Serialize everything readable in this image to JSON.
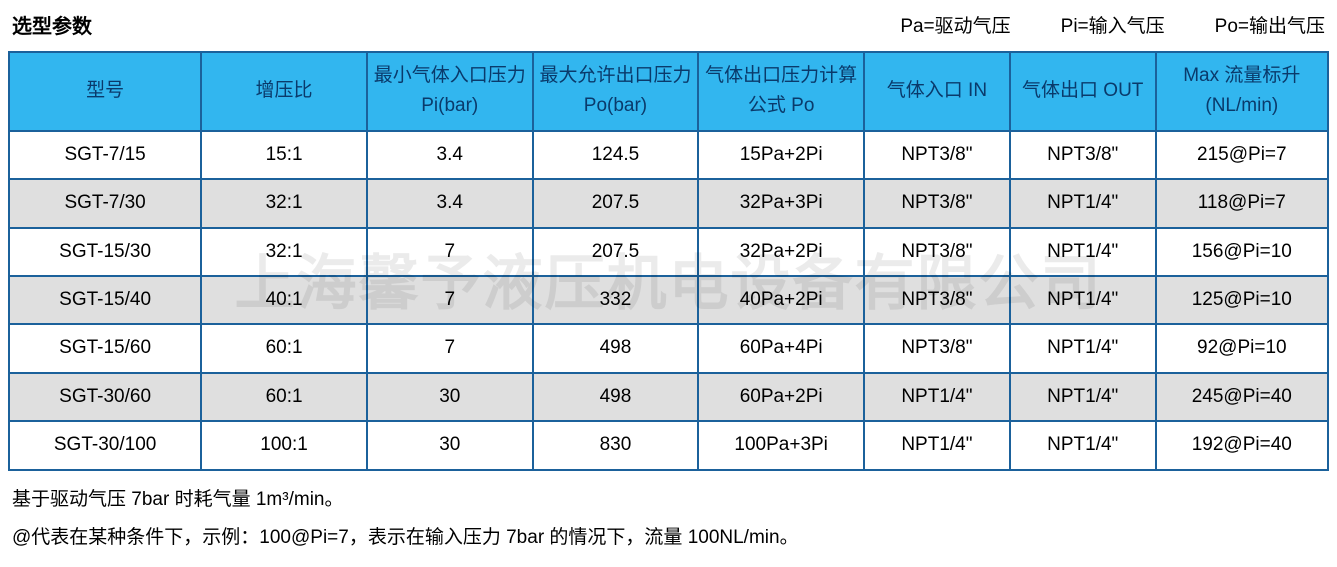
{
  "title": "选型参数",
  "legend": {
    "pa": "Pa=驱动气压",
    "pi": "Pi=输入气压",
    "po": "Po=输出气压"
  },
  "table": {
    "header_bg": "#32b6ef",
    "header_text_color": "#0a3a6b",
    "border_color": "#1b619b",
    "row_even_bg": "#ffffff",
    "row_odd_bg": "#dfdfdf",
    "cell_fontsize": 19,
    "columns": [
      "型号",
      "增压比",
      "最小气体入口压力 Pi(bar)",
      "最大允许出口压力 Po(bar)",
      "气体出口压力计算公式 Po",
      "气体入口 IN",
      "气体出口 OUT",
      "Max 流量标升 (NL/min)"
    ],
    "rows": [
      [
        "SGT-7/15",
        "15:1",
        "3.4",
        "124.5",
        "15Pa+2Pi",
        "NPT3/8\"",
        "NPT3/8\"",
        "215@Pi=7"
      ],
      [
        "SGT-7/30",
        "32:1",
        "3.4",
        "207.5",
        "32Pa+3Pi",
        "NPT3/8\"",
        "NPT1/4\"",
        "118@Pi=7"
      ],
      [
        "SGT-15/30",
        "32:1",
        "7",
        "207.5",
        "32Pa+2Pi",
        "NPT3/8\"",
        "NPT1/4\"",
        "156@Pi=10"
      ],
      [
        "SGT-15/40",
        "40:1",
        "7",
        "332",
        "40Pa+2Pi",
        "NPT3/8\"",
        "NPT1/4\"",
        "125@Pi=10"
      ],
      [
        "SGT-15/60",
        "60:1",
        "7",
        "498",
        "60Pa+4Pi",
        "NPT3/8\"",
        "NPT1/4\"",
        "92@Pi=10"
      ],
      [
        "SGT-30/60",
        "60:1",
        "30",
        "498",
        "60Pa+2Pi",
        "NPT1/4\"",
        "NPT1/4\"",
        "245@Pi=40"
      ],
      [
        "SGT-30/100",
        "100:1",
        "30",
        "830",
        "100Pa+3Pi",
        "NPT1/4\"",
        "NPT1/4\"",
        "192@Pi=40"
      ]
    ]
  },
  "notes": {
    "line1": "基于驱动气压 7bar 时耗气量 1m³/min。",
    "line2": "@代表在某种条件下，示例：100@Pi=7，表示在输入压力 7bar 的情况下，流量 100NL/min。"
  },
  "watermark": "上海馨予液压机电设备有限公司"
}
